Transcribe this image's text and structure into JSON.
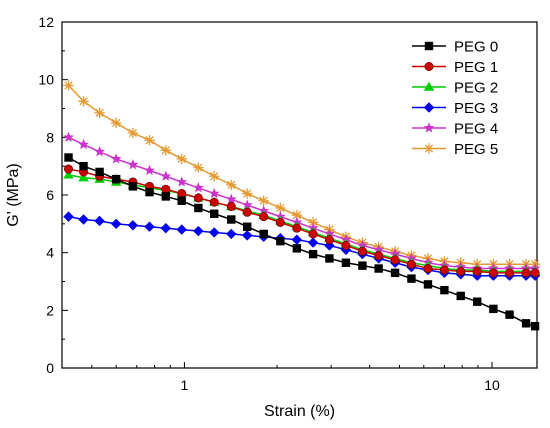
{
  "chart_data": {
    "type": "line",
    "xlabel": "Strain (%)",
    "ylabel": "G' (MPa)",
    "xscale": "log",
    "xlim": [
      0.4,
      14
    ],
    "ylim": [
      0,
      12
    ],
    "x_ticks": [
      {
        "value": 1,
        "label": "1"
      },
      {
        "value": 10,
        "label": "10"
      }
    ],
    "y_ticks": [
      0,
      2,
      4,
      6,
      8,
      10,
      12
    ],
    "grid": false,
    "legend": "top-right",
    "x": [
      0.42,
      0.47,
      0.53,
      0.6,
      0.68,
      0.77,
      0.87,
      0.98,
      1.11,
      1.25,
      1.42,
      1.6,
      1.81,
      2.05,
      2.32,
      2.62,
      2.96,
      3.35,
      3.79,
      4.28,
      4.84,
      5.47,
      6.19,
      7.0,
      7.91,
      8.95,
      10.1,
      11.4,
      12.9,
      13.8
    ],
    "series": [
      {
        "name": "PEG 0",
        "color": "#000000",
        "marker": "square",
        "values": [
          7.3,
          7.0,
          6.8,
          6.55,
          6.3,
          6.1,
          5.95,
          5.8,
          5.55,
          5.35,
          5.15,
          4.9,
          4.65,
          4.4,
          4.15,
          3.95,
          3.8,
          3.65,
          3.55,
          3.45,
          3.3,
          3.1,
          2.9,
          2.7,
          2.5,
          2.3,
          2.05,
          1.85,
          1.55,
          1.45
        ]
      },
      {
        "name": "PEG 1",
        "color": "#cc0000",
        "marker": "circle",
        "values": [
          6.9,
          6.8,
          6.65,
          6.55,
          6.45,
          6.3,
          6.2,
          6.05,
          5.9,
          5.75,
          5.6,
          5.4,
          5.25,
          5.05,
          4.85,
          4.65,
          4.45,
          4.25,
          4.05,
          3.9,
          3.75,
          3.6,
          3.45,
          3.4,
          3.35,
          3.35,
          3.3,
          3.3,
          3.3,
          3.3
        ]
      },
      {
        "name": "PEG 2",
        "color": "#00cc00",
        "marker": "triangle",
        "values": [
          6.7,
          6.6,
          6.55,
          6.45,
          6.35,
          6.25,
          6.15,
          6.05,
          5.9,
          5.75,
          5.6,
          5.45,
          5.3,
          5.1,
          4.9,
          4.7,
          4.5,
          4.3,
          4.1,
          3.95,
          3.8,
          3.65,
          3.55,
          3.45,
          3.4,
          3.4,
          3.35,
          3.35,
          3.35,
          3.35
        ]
      },
      {
        "name": "PEG 3",
        "color": "#0000ee",
        "marker": "diamond",
        "values": [
          5.25,
          5.15,
          5.1,
          5.0,
          4.95,
          4.9,
          4.85,
          4.8,
          4.75,
          4.7,
          4.65,
          4.6,
          4.55,
          4.5,
          4.45,
          4.35,
          4.25,
          4.1,
          3.95,
          3.8,
          3.65,
          3.5,
          3.4,
          3.3,
          3.25,
          3.2,
          3.2,
          3.2,
          3.2,
          3.2
        ]
      },
      {
        "name": "PEG 4",
        "color": "#cc33cc",
        "marker": "star",
        "values": [
          8.0,
          7.75,
          7.5,
          7.25,
          7.05,
          6.85,
          6.65,
          6.45,
          6.25,
          6.05,
          5.85,
          5.65,
          5.45,
          5.25,
          5.05,
          4.85,
          4.65,
          4.45,
          4.25,
          4.1,
          3.95,
          3.8,
          3.65,
          3.55,
          3.5,
          3.45,
          3.45,
          3.45,
          3.45,
          3.45
        ]
      },
      {
        "name": "PEG 5",
        "color": "#e69a33",
        "marker": "asterisk",
        "values": [
          9.8,
          9.25,
          8.85,
          8.5,
          8.15,
          7.9,
          7.55,
          7.25,
          6.95,
          6.65,
          6.35,
          6.05,
          5.8,
          5.55,
          5.3,
          5.05,
          4.8,
          4.55,
          4.35,
          4.2,
          4.05,
          3.9,
          3.8,
          3.7,
          3.65,
          3.6,
          3.6,
          3.6,
          3.6,
          3.6
        ]
      }
    ]
  }
}
